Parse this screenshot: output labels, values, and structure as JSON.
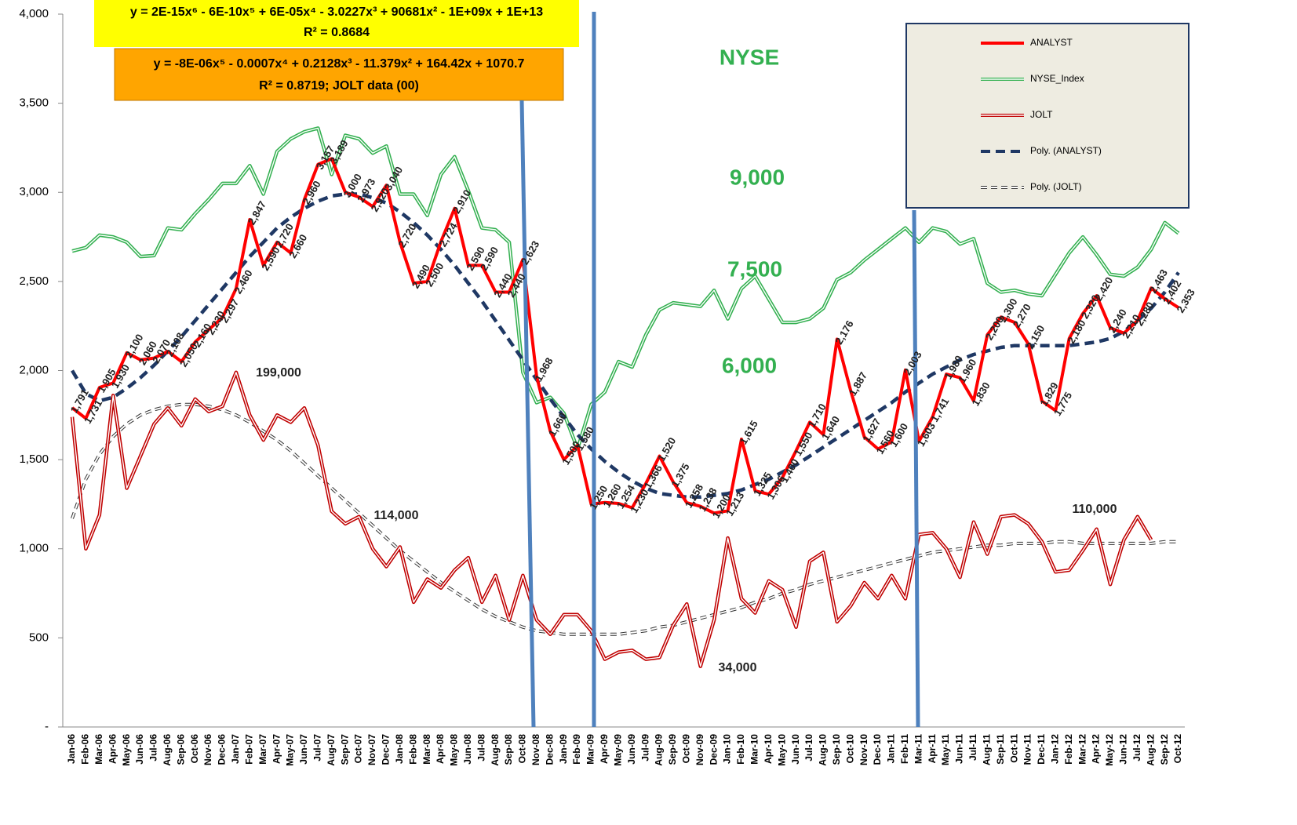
{
  "chart_data": {
    "type": "line",
    "equations": [
      "y = 2E-15x⁶ - 6E-10x⁵ + 6E-05x⁴ - 3.0227x³ + 90681x² - 1E+09x + 1E+13",
      "R² = 0.8684",
      "y = -8E-06x⁵ - 0.0007x⁴ + 0.2128x³ - 11.379x² + 164.42x + 1070.7",
      "R² = 0.8719; JOLT data (00)"
    ],
    "annotations_green": [
      "NYSE",
      "9,000",
      "7,500",
      "6,000"
    ],
    "annotations_jolt": [
      "199,000",
      "114,000",
      "34,000",
      "110,000"
    ],
    "categories": [
      "Jan-06",
      "Feb-06",
      "Mar-06",
      "Apr-06",
      "May-06",
      "Jun-06",
      "Jul-06",
      "Aug-06",
      "Sep-06",
      "Oct-06",
      "Nov-06",
      "Dec-06",
      "Jan-07",
      "Feb-07",
      "Mar-07",
      "Apr-07",
      "May-07",
      "Jun-07",
      "Jul-07",
      "Aug-07",
      "Sep-07",
      "Oct-07",
      "Nov-07",
      "Dec-07",
      "Jan-08",
      "Feb-08",
      "Mar-08",
      "Apr-08",
      "May-08",
      "Jun-08",
      "Jul-08",
      "Aug-08",
      "Sep-08",
      "Oct-08",
      "Nov-08",
      "Dec-08",
      "Jan-09",
      "Feb-09",
      "Mar-09",
      "Apr-09",
      "May-09",
      "Jun-09",
      "Jul-09",
      "Aug-09",
      "Sep-09",
      "Oct-09",
      "Nov-09",
      "Dec-09",
      "Jan-10",
      "Feb-10",
      "Mar-10",
      "Apr-10",
      "May-10",
      "Jun-10",
      "Jul-10",
      "Aug-10",
      "Sep-10",
      "Oct-10",
      "Nov-10",
      "Dec-10",
      "Jan-11",
      "Feb-11",
      "Mar-11",
      "Apr-11",
      "May-11",
      "Jun-11",
      "Jul-11",
      "Aug-11",
      "Sep-11",
      "Oct-11",
      "Nov-11",
      "Dec-11",
      "Jan-12",
      "Feb-12",
      "Mar-12",
      "Apr-12",
      "May-12",
      "Jun-12",
      "Jul-12",
      "Aug-12",
      "Sep-12",
      "Oct-12"
    ],
    "ylim": [
      0,
      4000
    ],
    "yticks": [
      {
        "value": 0,
        "label": "-"
      },
      500,
      {
        "value": 1000,
        "label": "1,000"
      },
      {
        "value": 1500,
        "label": "1,500"
      },
      {
        "value": 2000,
        "label": "2,000"
      },
      {
        "value": 2500,
        "label": "2,500"
      },
      {
        "value": 3000,
        "label": "3,000"
      },
      {
        "value": 3500,
        "label": "3,500"
      },
      {
        "value": 4000,
        "label": "4,000"
      }
    ],
    "series": [
      {
        "name": "ANALYST",
        "color": "#ff0000",
        "line_style": "solid",
        "values": [
          1791,
          1731,
          1905,
          1930,
          2100,
          2060,
          2070,
          2108,
          2050,
          2160,
          2230,
          2297,
          2460,
          2847,
          2590,
          2720,
          2660,
          2960,
          3157,
          3189,
          3000,
          2973,
          2920,
          3040,
          2720,
          2490,
          2500,
          2724,
          2910,
          2590,
          2590,
          2440,
          2440,
          2623,
          1968,
          1660,
          1500,
          1580,
          1250,
          1260,
          1254,
          1230,
          1366,
          1520,
          1375,
          1258,
          1238,
          1200,
          1213,
          1615,
          1325,
          1306,
          1400,
          1550,
          1710,
          1640,
          2176,
          1887,
          1627,
          1560,
          1600,
          2003,
          1603,
          1741,
          1980,
          1960,
          1830,
          2200,
          2300,
          2270,
          2150,
          1829,
          1775,
          2180,
          2320,
          2420,
          2240,
          2210,
          2280,
          2463,
          2402,
          2353
        ],
        "value_labels": [
          "1,791",
          "1,731",
          "1,905",
          "1,930",
          "2,100",
          "2,060",
          "2,070",
          "2,108",
          "2,050",
          "2,160",
          "2,230",
          "2,297",
          "2,460",
          "2,847",
          "2,590",
          "2,720",
          "2,660",
          "2,960",
          "3,157",
          "3,189",
          "3,000",
          "2,973",
          "2,920",
          "3,040",
          "2,720",
          "2,490",
          "2,500",
          "2,724",
          "2,910",
          "2,590",
          "2,590",
          "2,440",
          "2,440",
          "2,623",
          "1,968",
          "1,660",
          "1,500",
          "1,580",
          "1,250",
          "1,260",
          "1,254",
          "1,230",
          "1,366",
          "1,520",
          "1,375",
          "1,258",
          "1,238",
          "1,200",
          "1,213",
          "1,615",
          "1,325",
          "1,306",
          "1,400",
          "1,550",
          "1,710",
          "1,640",
          "2,176",
          "1,887",
          "1,627",
          "1,560",
          "1,600",
          "2,003",
          "1,603",
          "1,741",
          "1,980",
          "1,960",
          "1,830",
          "2,200",
          "2,300",
          "2,270",
          "2,150",
          "1,829",
          "1,775",
          "2,180",
          "2,320",
          "2,420",
          "2,240",
          "2,210",
          "2,280",
          "2,463",
          "2,402",
          "2,353"
        ]
      },
      {
        "name": "NYSE_Index",
        "color": "#33b050",
        "line_style": "double",
        "values": [
          2670,
          2690,
          2760,
          2750,
          2720,
          2640,
          2645,
          2800,
          2790,
          2880,
          2960,
          3050,
          3050,
          3150,
          2990,
          3230,
          3300,
          3340,
          3360,
          3100,
          3320,
          3300,
          3220,
          3260,
          2990,
          2990,
          2870,
          3100,
          3200,
          3010,
          2800,
          2790,
          2720,
          1990,
          1820,
          1850,
          1760,
          1560,
          1810,
          1880,
          2050,
          2020,
          2200,
          2340,
          2380,
          2370,
          2360,
          2450,
          2290,
          2460,
          2530,
          2400,
          2270,
          2270,
          2290,
          2350,
          2510,
          2550,
          2620,
          2680,
          2740,
          2800,
          2720,
          2800,
          2780,
          2710,
          2740,
          2490,
          2440,
          2450,
          2430,
          2420,
          2540,
          2660,
          2750,
          2650,
          2540,
          2530,
          2580,
          2680,
          2830,
          2770
        ]
      },
      {
        "name": "JOLT",
        "color": "#c00000",
        "line_style": "double",
        "values": [
          1740,
          1000,
          1190,
          1860,
          1340,
          1520,
          1700,
          1790,
          1690,
          1840,
          1770,
          1800,
          1990,
          1750,
          1610,
          1750,
          1710,
          1790,
          1580,
          1210,
          1140,
          1180,
          1000,
          900,
          1010,
          700,
          830,
          780,
          880,
          950,
          700,
          850,
          600,
          850,
          600,
          520,
          630,
          630,
          540,
          380,
          420,
          430,
          380,
          390,
          570,
          690,
          340,
          600,
          1060,
          720,
          640,
          820,
          770,
          560,
          930,
          980,
          590,
          680,
          810,
          720,
          850,
          720,
          1080,
          1090,
          1000,
          840,
          1150,
          970,
          1180,
          1190,
          1140,
          1040,
          870,
          880,
          990,
          1110,
          800,
          1050,
          1180,
          1050,
          null,
          null
        ]
      },
      {
        "name": "Poly. (ANALYST)",
        "color": "#1f3864",
        "line_style": "dashed",
        "values": [
          2000,
          1870,
          1830,
          1850,
          1900,
          1960,
          2030,
          2110,
          2190,
          2280,
          2370,
          2460,
          2550,
          2640,
          2720,
          2800,
          2860,
          2910,
          2950,
          2980,
          2990,
          2990,
          2970,
          2940,
          2890,
          2830,
          2760,
          2680,
          2590,
          2490,
          2390,
          2280,
          2170,
          2060,
          1950,
          1840,
          1740,
          1640,
          1560,
          1490,
          1430,
          1380,
          1340,
          1310,
          1300,
          1290,
          1290,
          1300,
          1310,
          1330,
          1360,
          1390,
          1430,
          1470,
          1520,
          1570,
          1620,
          1670,
          1720,
          1770,
          1820,
          1880,
          1930,
          1980,
          2020,
          2060,
          2090,
          2110,
          2130,
          2140,
          2140,
          2140,
          2140,
          2140,
          2150,
          2160,
          2180,
          2220,
          2280,
          2350,
          2440,
          2550
        ]
      },
      {
        "name": "Poly. (JOLT)",
        "color": "#333333",
        "line_style": "double-dashed",
        "values": [
          1170,
          1390,
          1530,
          1630,
          1700,
          1750,
          1780,
          1800,
          1810,
          1810,
          1800,
          1780,
          1750,
          1710,
          1660,
          1610,
          1550,
          1480,
          1410,
          1340,
          1270,
          1200,
          1130,
          1060,
          990,
          930,
          870,
          810,
          760,
          710,
          660,
          620,
          590,
          560,
          540,
          530,
          520,
          520,
          520,
          520,
          520,
          530,
          540,
          560,
          570,
          590,
          610,
          630,
          650,
          670,
          700,
          720,
          750,
          770,
          800,
          820,
          840,
          860,
          880,
          900,
          920,
          940,
          960,
          980,
          990,
          1000,
          1010,
          1020,
          1020,
          1030,
          1030,
          1030,
          1040,
          1040,
          1030,
          1030,
          1030,
          1030,
          1030,
          1030,
          1040,
          1040
        ]
      }
    ]
  }
}
